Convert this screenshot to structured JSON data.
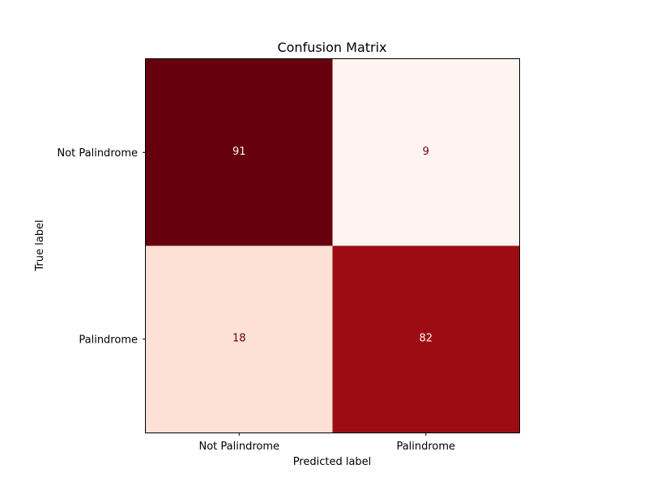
{
  "chart_data": {
    "type": "heatmap",
    "title": "Confusion Matrix",
    "xlabel": "Predicted label",
    "ylabel": "True label",
    "x_categories": [
      "Not Palindrome",
      "Palindrome"
    ],
    "y_categories": [
      "Not Palindrome",
      "Palindrome"
    ],
    "values": [
      [
        91,
        9
      ],
      [
        18,
        82
      ]
    ],
    "colormap": "Reds",
    "cell_colors": [
      [
        "#67000d",
        "#fff4ef"
      ],
      [
        "#fde0d6",
        "#9c0d13"
      ]
    ],
    "text_colors": [
      [
        "#fff4ef",
        "#67000d"
      ],
      [
        "#67000d",
        "#fff4ef"
      ]
    ],
    "grid": false
  }
}
